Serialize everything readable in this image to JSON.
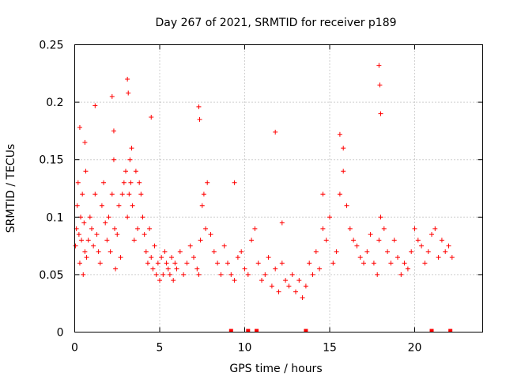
{
  "chart_data": {
    "type": "scatter",
    "title": "Day 267 of 2021, SRMTID for receiver p189",
    "xlabel": "GPS time / hours",
    "ylabel": "SRMTID / TECUs",
    "xlim": [
      0,
      24
    ],
    "ylim": [
      0,
      0.25
    ],
    "x_ticks": [
      0,
      5,
      10,
      15,
      20
    ],
    "x_tick_labels": [
      "0",
      "5",
      "10",
      "15",
      "20"
    ],
    "y_ticks": [
      0,
      0.05,
      0.1,
      0.15,
      0.2,
      0.25
    ],
    "y_tick_labels": [
      "0",
      "0.05",
      "0.1",
      "0.15",
      "0.2",
      "0.25"
    ],
    "grid": true,
    "marker": "+",
    "color": "#ff0000",
    "series": [
      {
        "name": "SRMTID",
        "x": [
          0.05,
          0.1,
          0.15,
          0.2,
          0.25,
          0.3,
          0.35,
          0.4,
          0.45,
          0.5,
          0.55,
          0.6,
          0.65,
          0.7,
          0.8,
          0.9,
          1.0,
          1.1,
          1.2,
          1.3,
          1.4,
          1.5,
          1.6,
          1.7,
          1.8,
          1.9,
          2.0,
          2.1,
          2.2,
          2.3,
          2.35,
          2.4,
          2.5,
          2.6,
          2.7,
          2.8,
          2.9,
          3.0,
          3.1,
          3.2,
          3.25,
          3.3,
          3.35,
          3.4,
          3.5,
          3.6,
          3.7,
          3.8,
          3.9,
          4.0,
          4.1,
          4.2,
          4.3,
          4.4,
          4.5,
          4.6,
          4.7,
          4.8,
          4.9,
          5.0,
          5.1,
          5.2,
          5.3,
          5.4,
          5.5,
          5.6,
          5.7,
          5.8,
          5.9,
          6.0,
          6.2,
          6.4,
          6.6,
          6.8,
          7.0,
          7.2,
          7.3,
          7.4,
          7.5,
          7.6,
          7.7,
          7.8,
          8.0,
          8.2,
          8.4,
          8.6,
          8.8,
          9.0,
          9.2,
          9.4,
          9.6,
          9.8,
          10.0,
          10.2,
          10.4,
          10.6,
          10.8,
          11.0,
          11.2,
          11.4,
          11.6,
          11.8,
          12.0,
          12.2,
          12.4,
          12.6,
          12.8,
          13.0,
          13.2,
          13.4,
          13.6,
          13.8,
          14.0,
          14.2,
          14.4,
          14.6,
          14.8,
          15.0,
          15.2,
          15.4,
          15.6,
          15.8,
          16.0,
          16.2,
          16.4,
          16.6,
          16.8,
          17.0,
          17.2,
          17.4,
          17.6,
          17.8,
          17.9,
          18.0,
          18.2,
          18.4,
          18.6,
          18.8,
          19.0,
          19.2,
          19.4,
          19.6,
          19.8,
          20.0,
          20.2,
          20.4,
          20.6,
          20.8,
          21.0,
          21.2,
          21.4,
          21.6,
          21.8,
          22.0,
          22.2,
          0.3,
          0.6,
          1.2,
          2.2,
          2.3,
          3.1,
          3.15,
          4.5,
          7.3,
          7.35,
          11.8,
          15.6,
          15.8,
          17.9,
          17.95,
          18.0,
          9.4,
          12.2,
          14.6
        ],
        "y": [
          0.075,
          0.09,
          0.11,
          0.13,
          0.085,
          0.06,
          0.1,
          0.08,
          0.12,
          0.05,
          0.095,
          0.07,
          0.14,
          0.065,
          0.08,
          0.1,
          0.09,
          0.075,
          0.12,
          0.085,
          0.07,
          0.06,
          0.11,
          0.13,
          0.095,
          0.08,
          0.1,
          0.07,
          0.12,
          0.15,
          0.09,
          0.055,
          0.085,
          0.11,
          0.065,
          0.12,
          0.13,
          0.14,
          0.1,
          0.12,
          0.15,
          0.13,
          0.16,
          0.11,
          0.08,
          0.14,
          0.09,
          0.13,
          0.12,
          0.1,
          0.085,
          0.07,
          0.06,
          0.09,
          0.065,
          0.055,
          0.075,
          0.05,
          0.06,
          0.045,
          0.065,
          0.05,
          0.07,
          0.06,
          0.055,
          0.05,
          0.065,
          0.045,
          0.06,
          0.055,
          0.07,
          0.05,
          0.06,
          0.075,
          0.065,
          0.055,
          0.05,
          0.08,
          0.11,
          0.12,
          0.09,
          0.13,
          0.085,
          0.07,
          0.06,
          0.05,
          0.075,
          0.06,
          0.05,
          0.045,
          0.065,
          0.07,
          0.055,
          0.05,
          0.08,
          0.09,
          0.06,
          0.045,
          0.05,
          0.065,
          0.04,
          0.055,
          0.035,
          0.06,
          0.045,
          0.04,
          0.05,
          0.035,
          0.045,
          0.03,
          0.04,
          0.06,
          0.05,
          0.07,
          0.055,
          0.09,
          0.08,
          0.1,
          0.06,
          0.07,
          0.12,
          0.14,
          0.11,
          0.09,
          0.08,
          0.075,
          0.065,
          0.06,
          0.07,
          0.085,
          0.06,
          0.05,
          0.08,
          0.1,
          0.09,
          0.07,
          0.06,
          0.08,
          0.065,
          0.05,
          0.06,
          0.055,
          0.07,
          0.09,
          0.08,
          0.075,
          0.06,
          0.07,
          0.085,
          0.09,
          0.065,
          0.08,
          0.07,
          0.075,
          0.065,
          0.178,
          0.165,
          0.197,
          0.205,
          0.175,
          0.22,
          0.208,
          0.187,
          0.196,
          0.185,
          0.174,
          0.172,
          0.16,
          0.232,
          0.215,
          0.19,
          0.13,
          0.095,
          0.12
        ]
      }
    ],
    "flag_markers_x": [
      9.2,
      10.2,
      10.7,
      13.6,
      21.0,
      22.1
    ]
  }
}
